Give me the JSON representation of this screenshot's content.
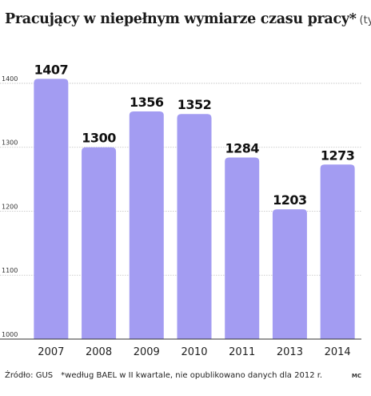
{
  "title": "Pracujący w niepełnym wymiarze czasu pracy*",
  "unit": "(tys.)",
  "source": "Źródło: GUS",
  "footnote": "*według BAEL w II kwartale, nie opublikowano danych dla 2012 r.",
  "credit": "MC",
  "colors": {
    "bar": "#a39cf2",
    "grid": "#bfbfbf",
    "axis": "#333333"
  },
  "chart_data": {
    "type": "bar",
    "title": "Pracujący w niepełnym wymiarze czasu pracy*",
    "xlabel": "",
    "ylabel": "",
    "categories": [
      "2007",
      "2008",
      "2009",
      "2010",
      "2011",
      "2013",
      "2014"
    ],
    "values": [
      1407,
      1300,
      1356,
      1352,
      1284,
      1203,
      1273
    ],
    "ylim": [
      1000,
      1420
    ],
    "yticks": [
      1000,
      1100,
      1200,
      1300,
      1400
    ],
    "grid": true,
    "data_labels": true
  }
}
